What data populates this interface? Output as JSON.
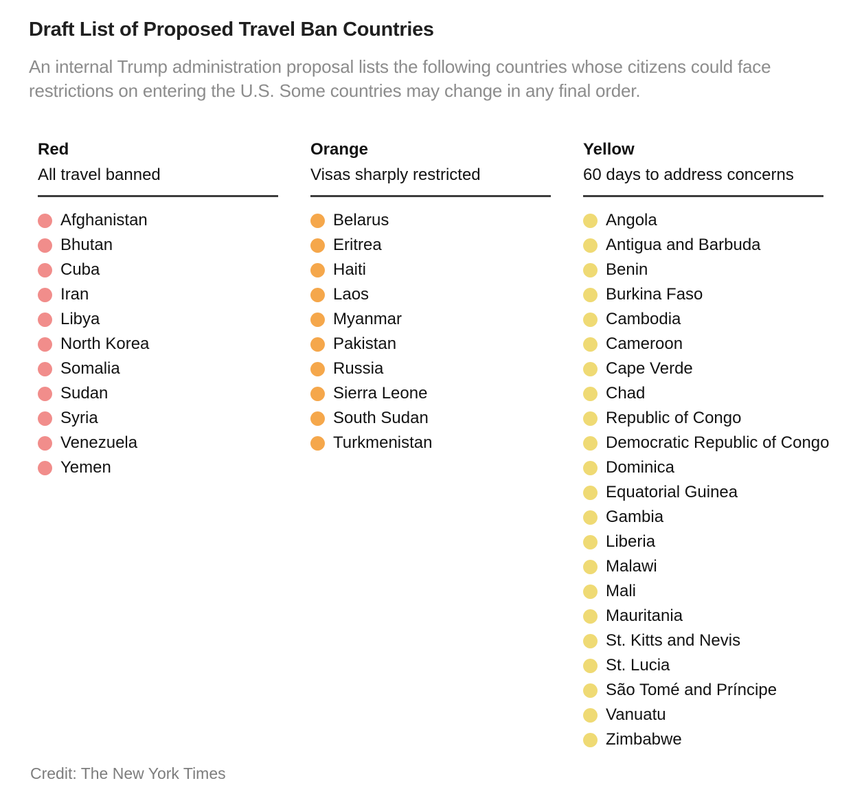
{
  "chart_data": {
    "type": "table",
    "title": "Draft List of Proposed Travel Ban Countries",
    "subtitle": "An internal Trump administration proposal lists the following countries whose citizens could face restrictions on entering the U.S. Some countries may change in any final order.",
    "credit": "Credit: The New York Times",
    "categories": [
      "Red",
      "Orange",
      "Yellow"
    ],
    "columns": [
      {
        "name": "Red",
        "description": "All travel banned",
        "dot_color": "#F18D8B",
        "countries": [
          "Afghanistan",
          "Bhutan",
          "Cuba",
          "Iran",
          "Libya",
          "North Korea",
          "Somalia",
          "Sudan",
          "Syria",
          "Venezuela",
          "Yemen"
        ]
      },
      {
        "name": "Orange",
        "description": "Visas sharply restricted",
        "dot_color": "#F5A74B",
        "countries": [
          "Belarus",
          "Eritrea",
          "Haiti",
          "Laos",
          "Myanmar",
          "Pakistan",
          "Russia",
          "Sierra Leone",
          "South Sudan",
          "Turkmenistan"
        ]
      },
      {
        "name": "Yellow",
        "description": "60 days to address concerns",
        "dot_color": "#EFDA74",
        "countries": [
          "Angola",
          "Antigua and Barbuda",
          "Benin",
          "Burkina Faso",
          "Cambodia",
          "Cameroon",
          "Cape Verde",
          "Chad",
          "Republic of Congo",
          "Democratic Republic of Congo",
          "Dominica",
          "Equatorial Guinea",
          "Gambia",
          "Liberia",
          "Malawi",
          "Mali",
          "Mauritania",
          "St. Kitts and Nevis",
          "St. Lucia",
          "São Tomé and Príncipe",
          "Vanuatu",
          "Zimbabwe"
        ]
      }
    ],
    "layout": {
      "legend_position": "none",
      "grid": false,
      "rule_color": "#3d3d3d",
      "subtitle_color": "#8c8c8c",
      "credit_color": "#7d7d7d"
    }
  }
}
